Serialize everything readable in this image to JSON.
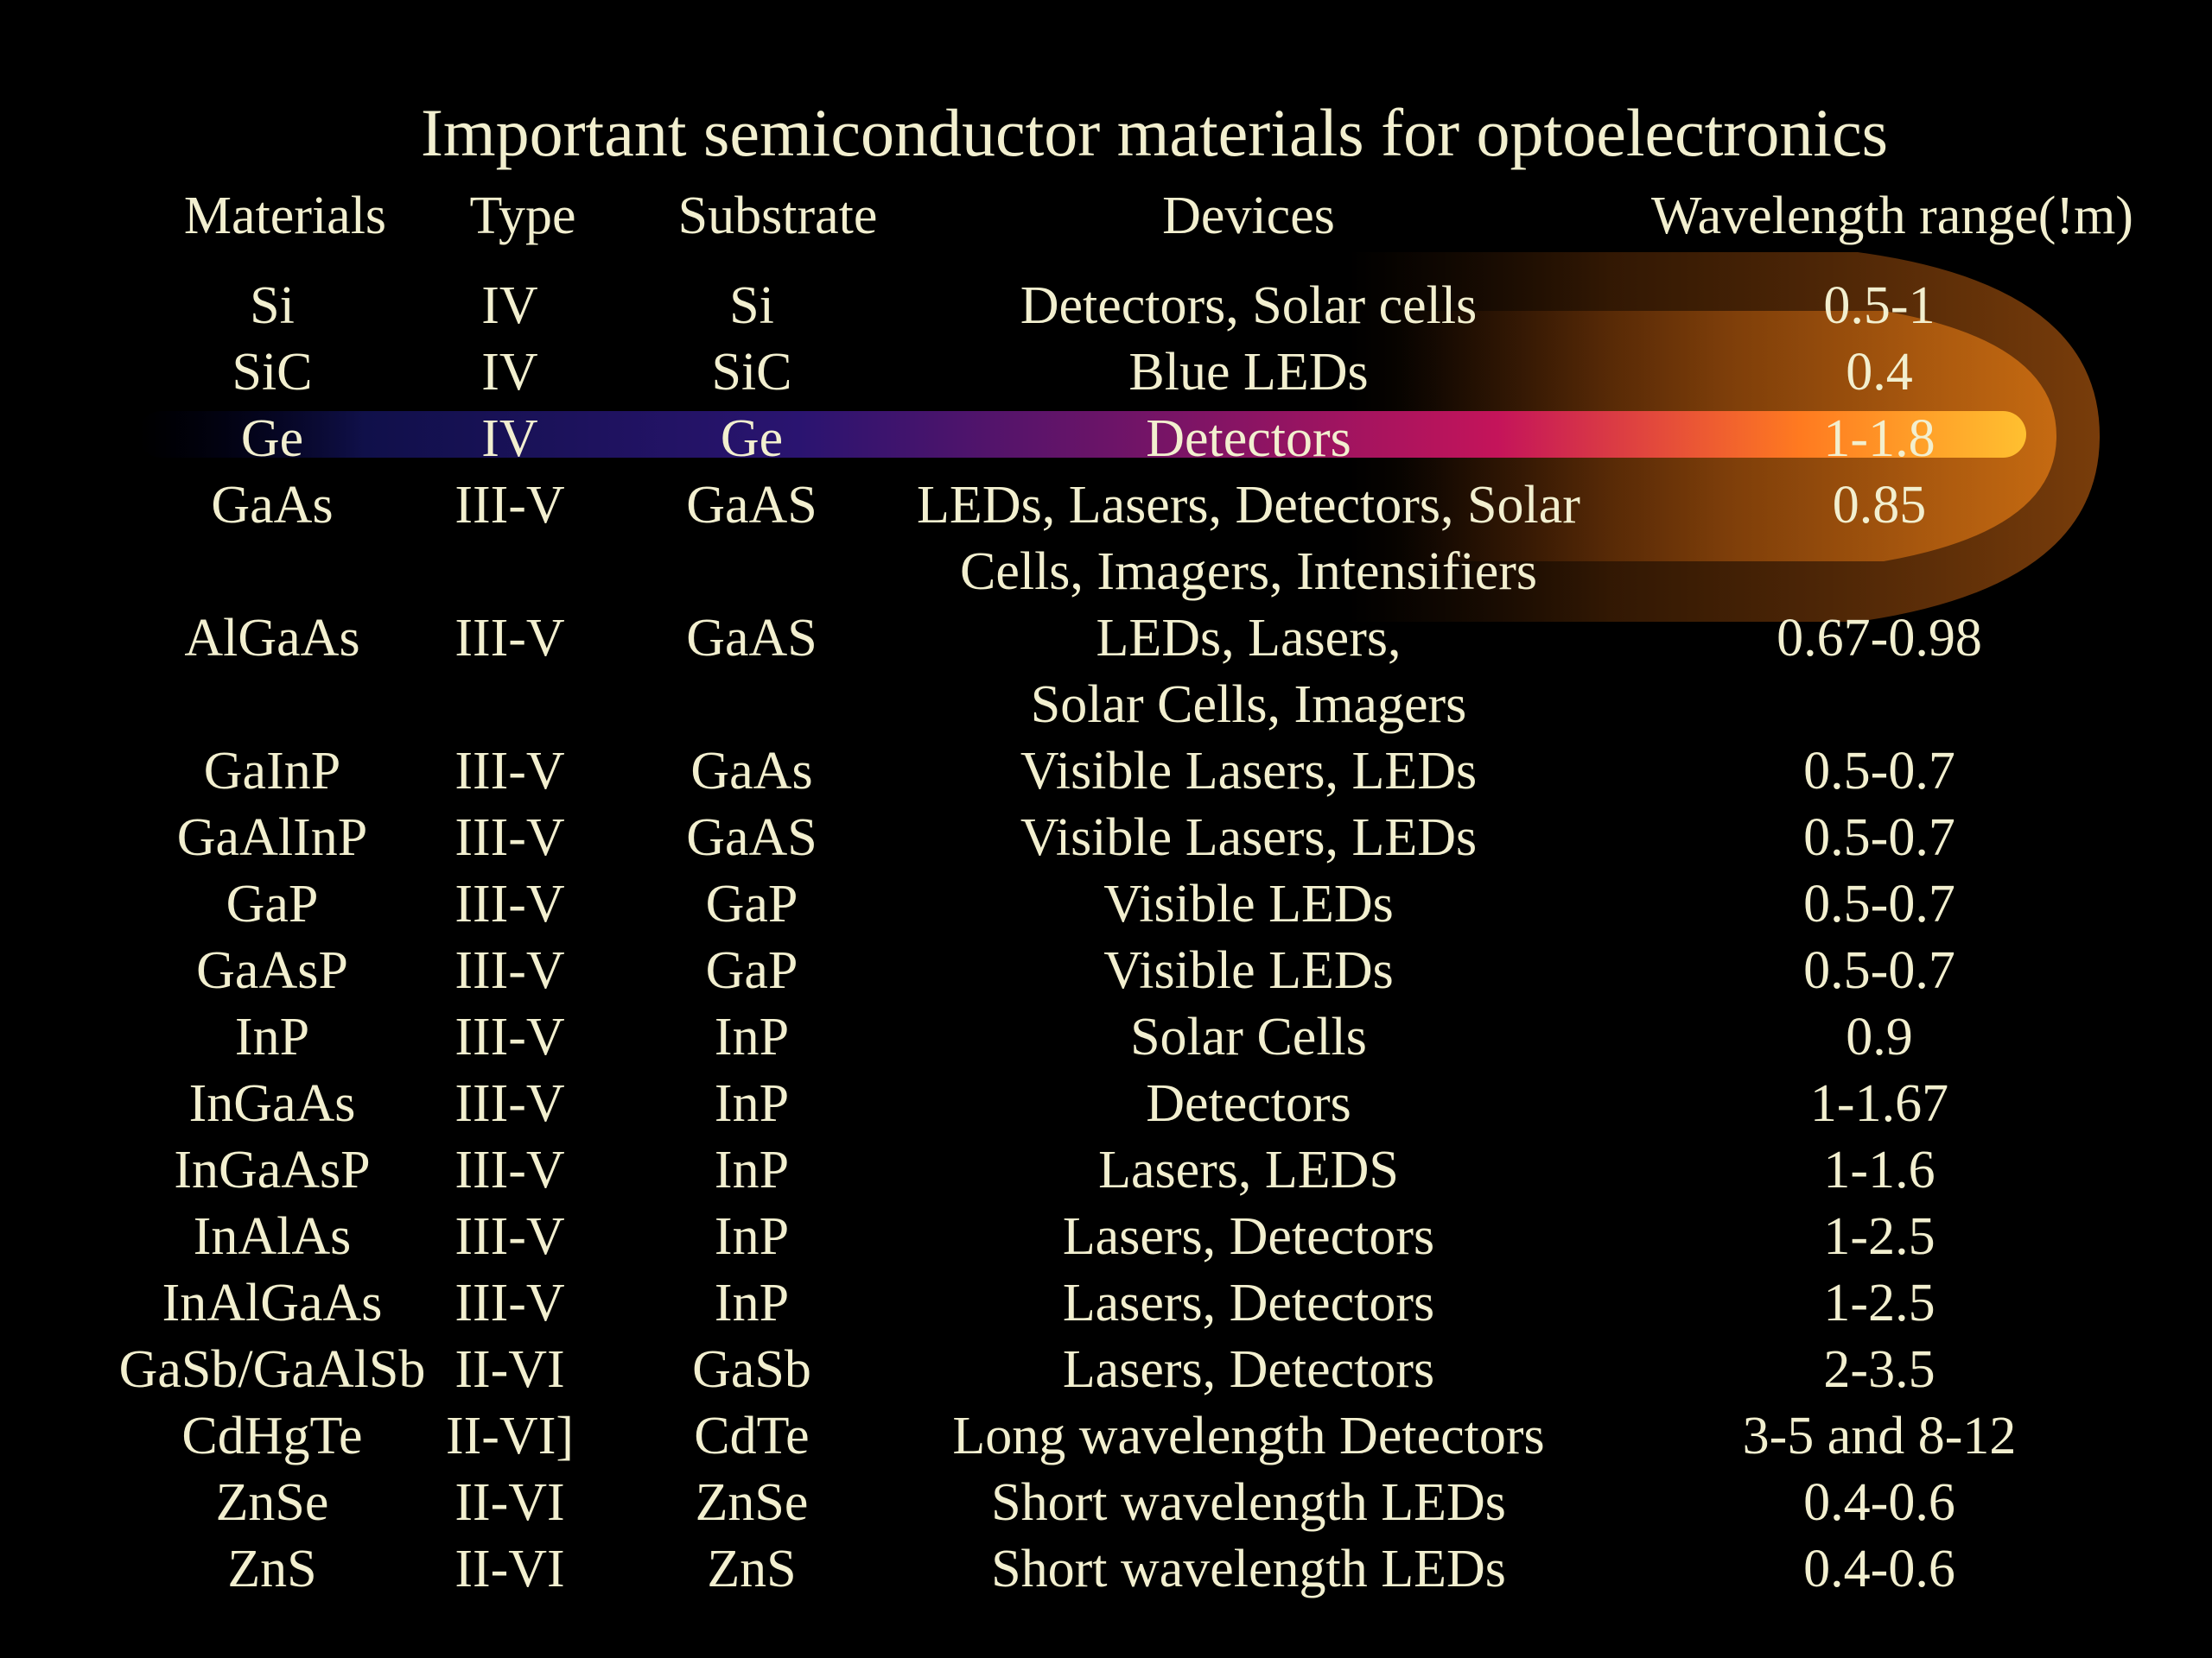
{
  "title": "Important semiconductor materials for optoelectronics",
  "headers": {
    "materials": "Materials",
    "type": "Type",
    "substrate": "Substrate",
    "devices": "Devices",
    "wavelength": "Wavelength range(!m)"
  },
  "rows": [
    {
      "material": "Si",
      "type": "IV",
      "substrate": "Si",
      "devices": [
        "Detectors, Solar cells"
      ],
      "wavelength": "0.5-1"
    },
    {
      "material": "SiC",
      "type": "IV",
      "substrate": "SiC",
      "devices": [
        "Blue LEDs"
      ],
      "wavelength": "0.4"
    },
    {
      "material": "Ge",
      "type": "IV",
      "substrate": "Ge",
      "devices": [
        "Detectors"
      ],
      "wavelength": "1-1.8"
    },
    {
      "material": "GaAs",
      "type": "III-V",
      "substrate": "GaAS",
      "devices": [
        "LEDs, Lasers, Detectors, Solar",
        "Cells, Imagers, Intensifiers"
      ],
      "wavelength": "0.85"
    },
    {
      "material": "AlGaAs",
      "type": "III-V",
      "substrate": "GaAS",
      "devices": [
        "LEDs, Lasers,",
        "Solar Cells, Imagers"
      ],
      "wavelength": "0.67-0.98"
    },
    {
      "material": "GaInP",
      "type": "III-V",
      "substrate": "GaAs",
      "devices": [
        "Visible Lasers, LEDs"
      ],
      "wavelength": "0.5-0.7"
    },
    {
      "material": "GaAlInP",
      "type": "III-V",
      "substrate": "GaAS",
      "devices": [
        "Visible Lasers, LEDs"
      ],
      "wavelength": "0.5-0.7"
    },
    {
      "material": "GaP",
      "type": "III-V",
      "substrate": "GaP",
      "devices": [
        "Visible LEDs"
      ],
      "wavelength": "0.5-0.7"
    },
    {
      "material": "GaAsP",
      "type": "III-V",
      "substrate": "GaP",
      "devices": [
        "Visible LEDs"
      ],
      "wavelength": "0.5-0.7"
    },
    {
      "material": "InP",
      "type": "III-V",
      "substrate": "InP",
      "devices": [
        "Solar Cells"
      ],
      "wavelength": "0.9"
    },
    {
      "material": "InGaAs",
      "type": "III-V",
      "substrate": "InP",
      "devices": [
        "Detectors"
      ],
      "wavelength": "1-1.67"
    },
    {
      "material": "InGaAsP",
      "type": "III-V",
      "substrate": "InP",
      "devices": [
        "Lasers, LEDS"
      ],
      "wavelength": "1-1.6"
    },
    {
      "material": "InAlAs",
      "type": "III-V",
      "substrate": "InP",
      "devices": [
        "Lasers, Detectors"
      ],
      "wavelength": "1-2.5"
    },
    {
      "material": "InAlGaAs",
      "type": "III-V",
      "substrate": "InP",
      "devices": [
        "Lasers, Detectors"
      ],
      "wavelength": "1-2.5"
    },
    {
      "material": "GaSb/GaAlSb",
      "type": "II-VI",
      "substrate": "GaSb",
      "devices": [
        "Lasers, Detectors"
      ],
      "wavelength": "2-3.5"
    },
    {
      "material": "CdHgTe",
      "type": "II-VI]",
      "substrate": "CdTe",
      "devices": [
        "Long wavelength Detectors"
      ],
      "wavelength": "3-5 and 8-12"
    },
    {
      "material": "ZnSe",
      "type": "II-VI",
      "substrate": "ZnSe",
      "devices": [
        "Short wavelength LEDs"
      ],
      "wavelength": "0.4-0.6"
    },
    {
      "material": "ZnS",
      "type": "II-VI",
      "substrate": "ZnS",
      "devices": [
        "Short wavelength LEDs"
      ],
      "wavelength": "0.4-0.6"
    }
  ],
  "colors": {
    "background": "#000000",
    "text": "#f2efcf",
    "comet_tail_start": "#10104a",
    "comet_mid": "#c0105a",
    "comet_head": "#ffb020"
  }
}
